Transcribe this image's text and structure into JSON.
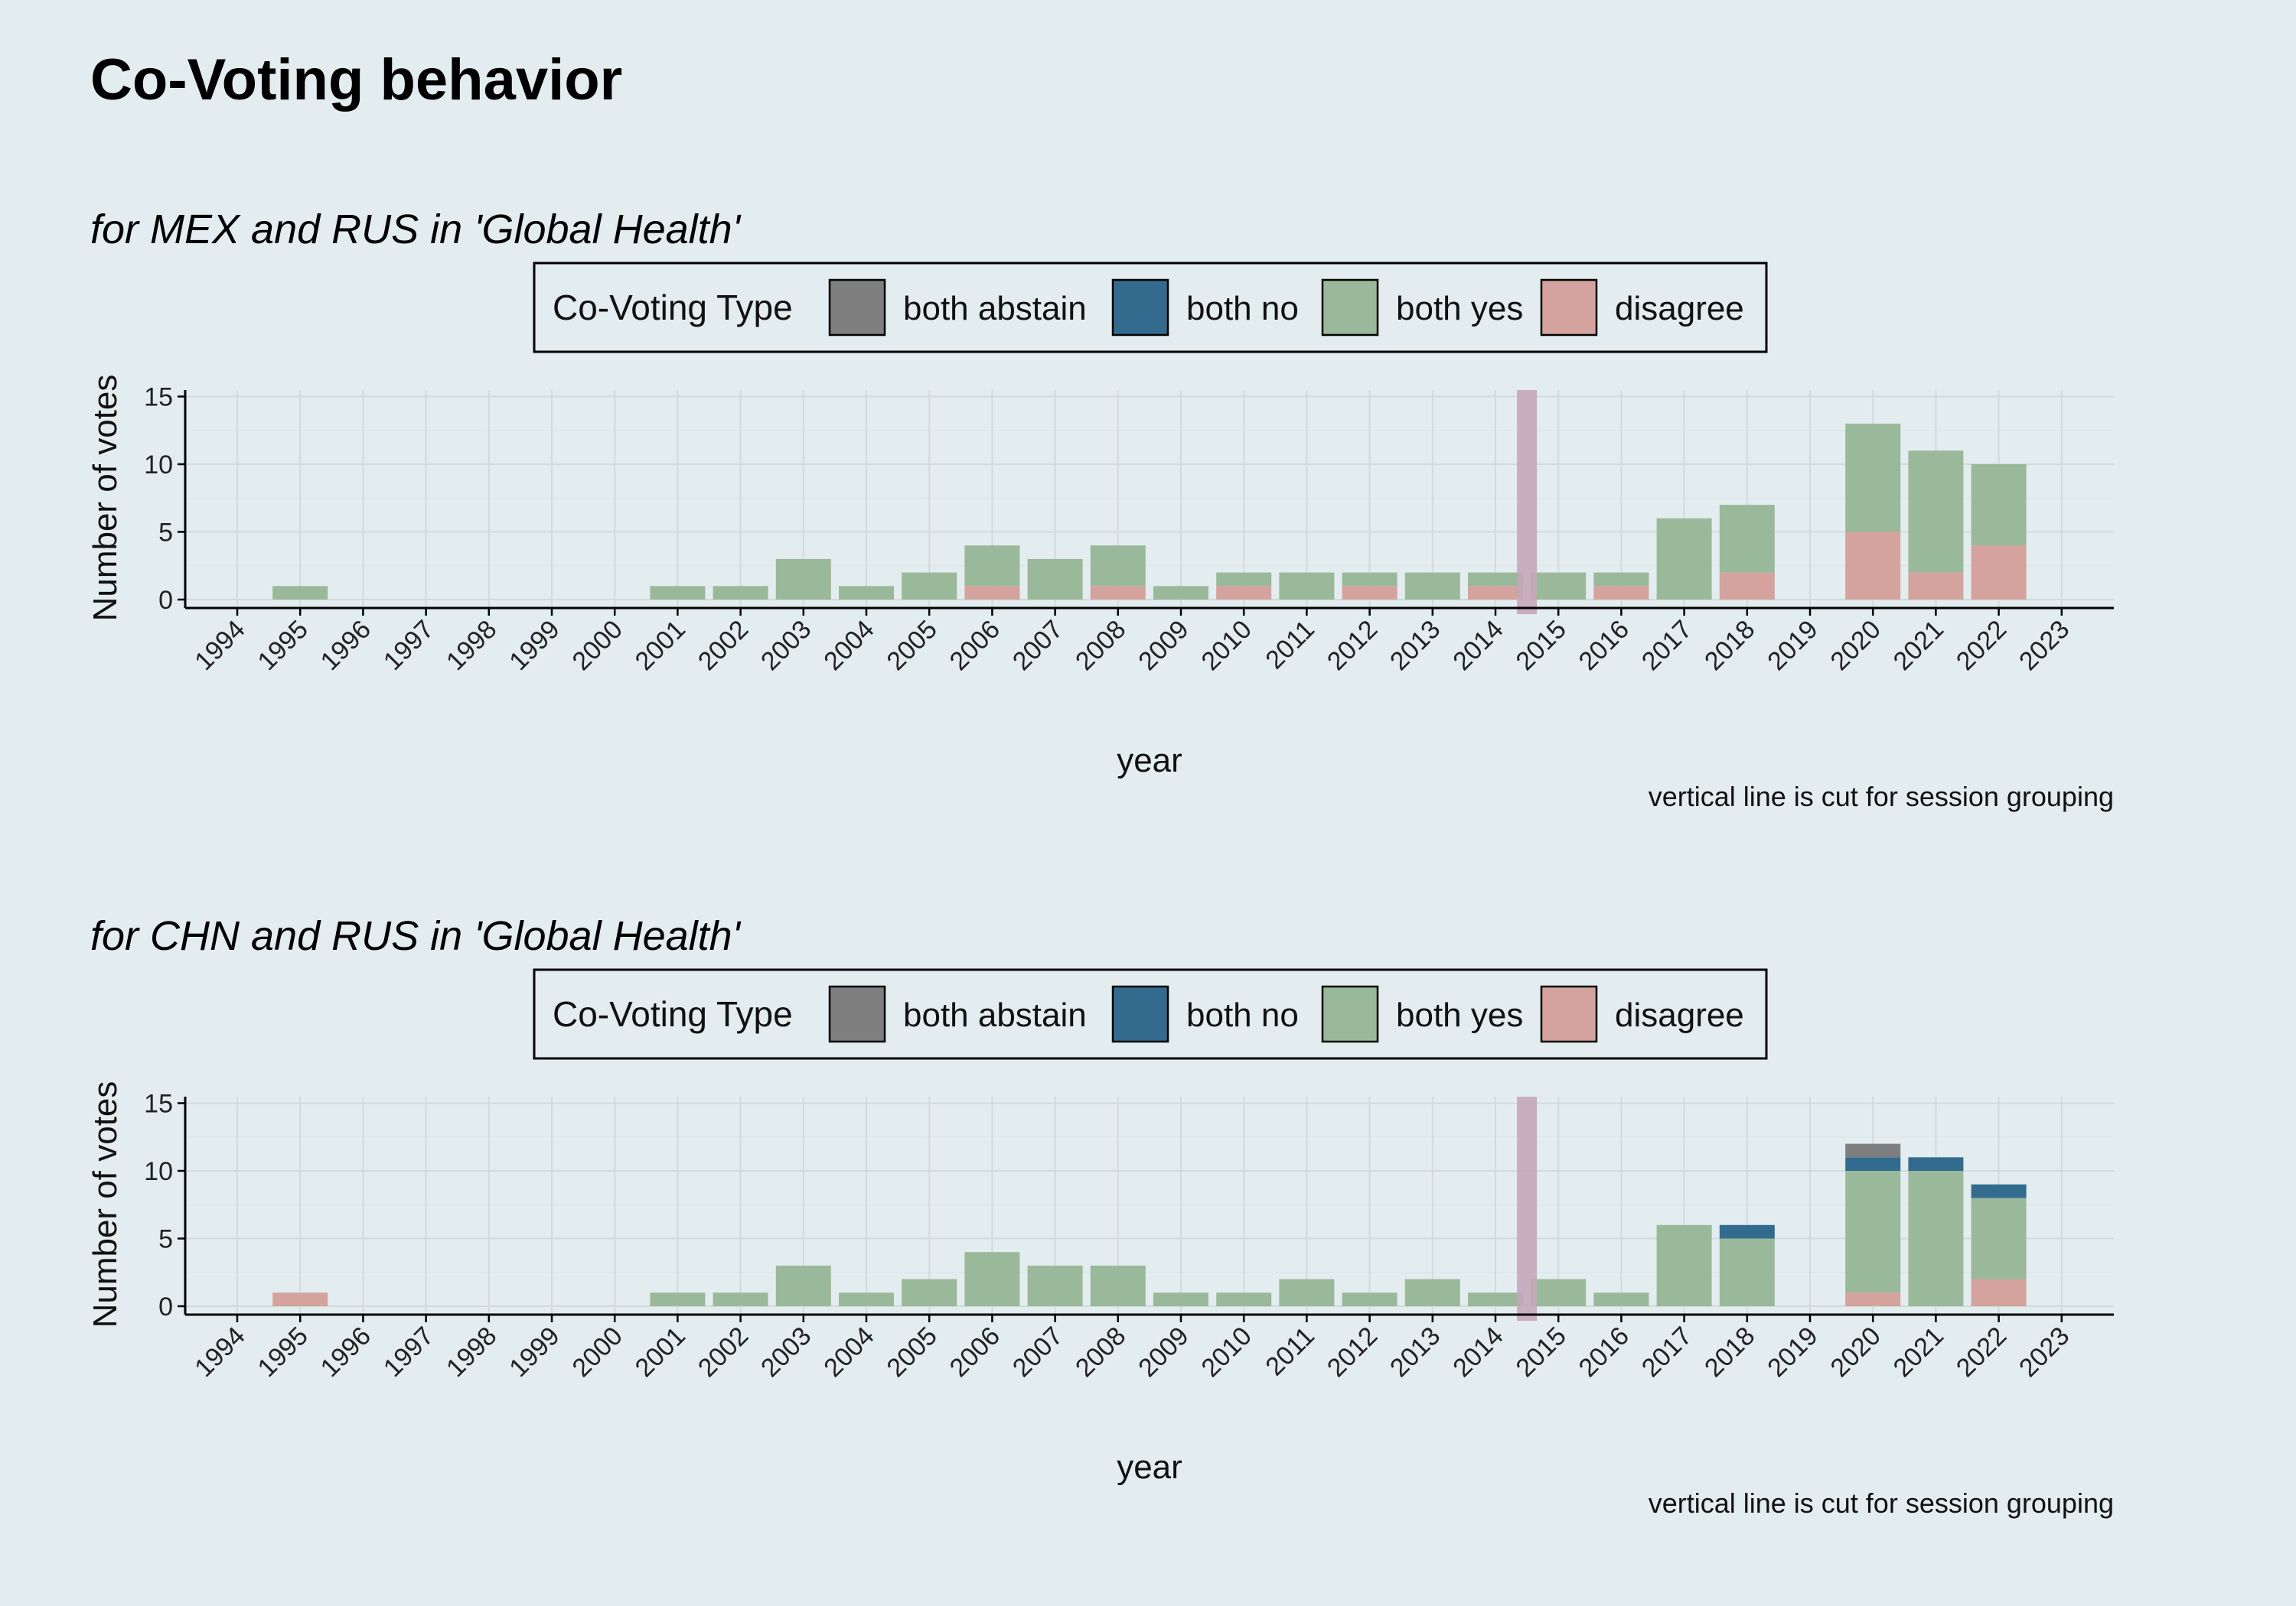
{
  "title": "Co-Voting behavior",
  "legend": {
    "title": "Co-Voting Type",
    "items": [
      {
        "label": "both abstain",
        "color": "#7f7f7f"
      },
      {
        "label": "both no",
        "color": "#336b8f"
      },
      {
        "label": "both yes",
        "color": "#9ab99a"
      },
      {
        "label": "disagree",
        "color": "#d4a39d"
      }
    ]
  },
  "cut_line_color": "#c4a7b8",
  "caption": "vertical line is cut for session grouping",
  "chart_data": [
    {
      "type": "bar",
      "stacked": true,
      "subtitle": "for MEX and RUS in 'Global Health'",
      "xlabel": "year",
      "ylabel": "Number of votes",
      "ylim": [
        0,
        15
      ],
      "yticks": [
        0,
        5,
        10,
        15
      ],
      "grid": true,
      "legend_position": "top",
      "session_cut_after": "2014",
      "categories": [
        "1994",
        "1995",
        "1996",
        "1997",
        "1998",
        "1999",
        "2000",
        "2001",
        "2002",
        "2003",
        "2004",
        "2005",
        "2006",
        "2007",
        "2008",
        "2009",
        "2010",
        "2011",
        "2012",
        "2013",
        "2014",
        "2015",
        "2016",
        "2017",
        "2018",
        "2019",
        "2020",
        "2021",
        "2022",
        "2023"
      ],
      "series": [
        {
          "name": "disagree",
          "values": [
            0,
            0,
            0,
            0,
            0,
            0,
            0,
            0,
            0,
            0,
            0,
            0,
            1,
            0,
            1,
            0,
            1,
            0,
            1,
            0,
            1,
            0,
            1,
            0,
            2,
            0,
            5,
            2,
            4,
            0
          ]
        },
        {
          "name": "both yes",
          "values": [
            0,
            1,
            0,
            0,
            0,
            0,
            0,
            1,
            1,
            3,
            1,
            2,
            3,
            3,
            3,
            1,
            1,
            2,
            1,
            2,
            1,
            2,
            1,
            6,
            5,
            0,
            8,
            9,
            6,
            0
          ]
        },
        {
          "name": "both no",
          "values": [
            0,
            0,
            0,
            0,
            0,
            0,
            0,
            0,
            0,
            0,
            0,
            0,
            0,
            0,
            0,
            0,
            0,
            0,
            0,
            0,
            0,
            0,
            0,
            0,
            0,
            0,
            0,
            0,
            0,
            0
          ]
        },
        {
          "name": "both abstain",
          "values": [
            0,
            0,
            0,
            0,
            0,
            0,
            0,
            0,
            0,
            0,
            0,
            0,
            0,
            0,
            0,
            0,
            0,
            0,
            0,
            0,
            0,
            0,
            0,
            0,
            0,
            0,
            0,
            0,
            0,
            0
          ]
        }
      ]
    },
    {
      "type": "bar",
      "stacked": true,
      "subtitle": "for CHN and RUS in 'Global Health'",
      "xlabel": "year",
      "ylabel": "Number of votes",
      "ylim": [
        0,
        15
      ],
      "yticks": [
        0,
        5,
        10,
        15
      ],
      "grid": true,
      "legend_position": "top",
      "session_cut_after": "2014",
      "categories": [
        "1994",
        "1995",
        "1996",
        "1997",
        "1998",
        "1999",
        "2000",
        "2001",
        "2002",
        "2003",
        "2004",
        "2005",
        "2006",
        "2007",
        "2008",
        "2009",
        "2010",
        "2011",
        "2012",
        "2013",
        "2014",
        "2015",
        "2016",
        "2017",
        "2018",
        "2019",
        "2020",
        "2021",
        "2022",
        "2023"
      ],
      "series": [
        {
          "name": "disagree",
          "values": [
            0,
            1,
            0,
            0,
            0,
            0,
            0,
            0,
            0,
            0,
            0,
            0,
            0,
            0,
            0,
            0,
            0,
            0,
            0,
            0,
            0,
            0,
            0,
            0,
            0,
            0,
            1,
            0,
            2,
            0
          ]
        },
        {
          "name": "both yes",
          "values": [
            0,
            0,
            0,
            0,
            0,
            0,
            0,
            1,
            1,
            3,
            1,
            2,
            4,
            3,
            3,
            1,
            1,
            2,
            1,
            2,
            1,
            2,
            1,
            6,
            5,
            0,
            9,
            10,
            6,
            0
          ]
        },
        {
          "name": "both no",
          "values": [
            0,
            0,
            0,
            0,
            0,
            0,
            0,
            0,
            0,
            0,
            0,
            0,
            0,
            0,
            0,
            0,
            0,
            0,
            0,
            0,
            0,
            0,
            0,
            0,
            1,
            0,
            1,
            1,
            1,
            0
          ]
        },
        {
          "name": "both abstain",
          "values": [
            0,
            0,
            0,
            0,
            0,
            0,
            0,
            0,
            0,
            0,
            0,
            0,
            0,
            0,
            0,
            0,
            0,
            0,
            0,
            0,
            0,
            0,
            0,
            0,
            0,
            0,
            1,
            0,
            0,
            0
          ]
        }
      ]
    }
  ]
}
